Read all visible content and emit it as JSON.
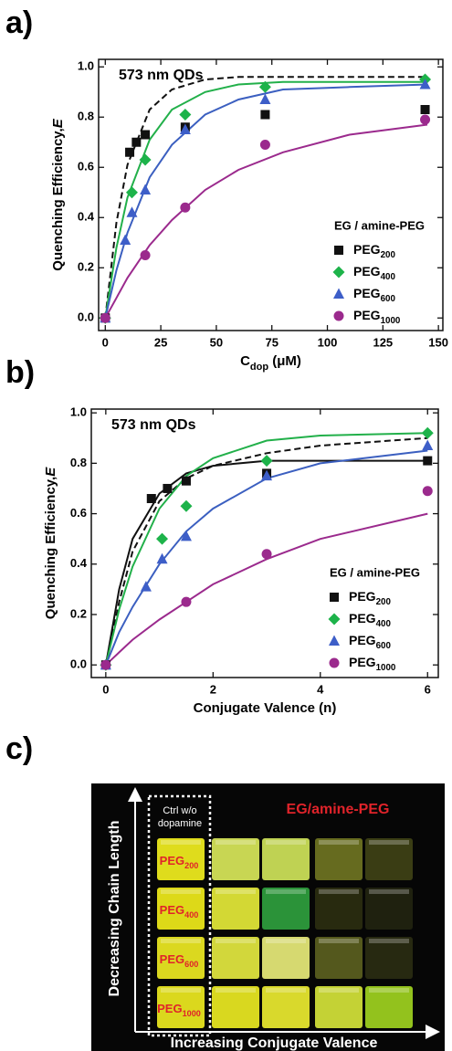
{
  "chart_data": [
    {
      "type": "scatter",
      "panel_label": "a)",
      "title": "573 nm QDs",
      "xlabel": "C",
      "xlabel_sub": "dop",
      "xlabel_unit": " (μM)",
      "ylabel": "Quenching Efficiency,",
      "ylabel_var": "E",
      "xlim": [
        -3,
        152
      ],
      "ylim": [
        -0.05,
        1.03
      ],
      "xticks": [
        0,
        25,
        50,
        75,
        100,
        125,
        150
      ],
      "yticks": [
        {
          "value": 0,
          "label": "0.0"
        },
        {
          "value": 0.2,
          "label": "0.2"
        },
        {
          "value": 0.4,
          "label": "0.4"
        },
        {
          "value": 0.6,
          "label": "0.6"
        },
        {
          "value": 0.8,
          "label": "0.8"
        },
        {
          "value": 1,
          "label": "1.0"
        }
      ],
      "legend": "lower right",
      "legend_title": "EG / amine-PEG",
      "series": [
        {
          "name": "PEG200",
          "color": "#111111",
          "marker": "square",
          "x": [
            0,
            11,
            14,
            18,
            36,
            72,
            144
          ],
          "values": [
            0,
            0.66,
            0.7,
            0.73,
            0.76,
            0.81,
            0.83
          ]
        },
        {
          "name": "PEG400",
          "color": "#1db34a",
          "marker": "diamond",
          "x": [
            0,
            12,
            18,
            36,
            72,
            144
          ],
          "values": [
            0,
            0.5,
            0.63,
            0.81,
            0.92,
            0.95
          ]
        },
        {
          "name": "PEG600",
          "color": "#3d5ec8",
          "marker": "triangle",
          "x": [
            0,
            9,
            12,
            18,
            36,
            72,
            144
          ],
          "values": [
            0,
            0.31,
            0.42,
            0.51,
            0.75,
            0.87,
            0.93
          ]
        },
        {
          "name": "PEG1000",
          "color": "#9b2a8d",
          "marker": "circle",
          "x": [
            0,
            18,
            36,
            72,
            144
          ],
          "values": [
            0,
            0.25,
            0.44,
            0.69,
            0.79
          ]
        }
      ],
      "fits": [
        {
          "color": "#111111",
          "dashed": true,
          "x": [
            0,
            5,
            10,
            20,
            30,
            45,
            60,
            80,
            110,
            145
          ],
          "values": [
            0,
            0.38,
            0.61,
            0.83,
            0.91,
            0.95,
            0.96,
            0.96,
            0.96,
            0.96
          ]
        },
        {
          "color": "#22b04a",
          "dashed": false,
          "x": [
            0,
            5,
            10,
            20,
            30,
            45,
            60,
            80,
            110,
            145
          ],
          "values": [
            0,
            0.28,
            0.48,
            0.71,
            0.83,
            0.9,
            0.93,
            0.94,
            0.94,
            0.94
          ]
        },
        {
          "color": "#3b5fc0",
          "dashed": false,
          "x": [
            0,
            5,
            10,
            20,
            30,
            45,
            60,
            80,
            110,
            145
          ],
          "values": [
            0,
            0.19,
            0.34,
            0.56,
            0.69,
            0.81,
            0.87,
            0.91,
            0.92,
            0.93
          ]
        },
        {
          "color": "#9b2a8d",
          "dashed": false,
          "x": [
            0,
            5,
            10,
            20,
            30,
            45,
            60,
            80,
            110,
            145
          ],
          "values": [
            0,
            0.08,
            0.16,
            0.29,
            0.39,
            0.51,
            0.59,
            0.66,
            0.73,
            0.77
          ]
        }
      ]
    },
    {
      "type": "scatter",
      "panel_label": "b)",
      "title": "573 nm QDs",
      "xlabel": "Conjugate Valence (n)",
      "ylabel": "Quenching Efficiency,",
      "ylabel_var": "E",
      "xlim": [
        -0.27,
        6.2
      ],
      "ylim": [
        -0.05,
        1.015
      ],
      "xticks": [
        0,
        2,
        4,
        6
      ],
      "yticks": [
        {
          "value": 0,
          "label": "0.0"
        },
        {
          "value": 0.2,
          "label": "0.2"
        },
        {
          "value": 0.4,
          "label": "0.4"
        },
        {
          "value": 0.6,
          "label": "0.6"
        },
        {
          "value": 0.8,
          "label": "0.8"
        },
        {
          "value": 1,
          "label": "1.0"
        }
      ],
      "legend": "lower right",
      "legend_title": "EG / amine-PEG",
      "series": [
        {
          "name": "PEG200",
          "color": "#111111",
          "marker": "square",
          "x": [
            0,
            0.85,
            1.15,
            1.5,
            3,
            6
          ],
          "values": [
            0,
            0.66,
            0.7,
            0.73,
            0.76,
            0.81
          ]
        },
        {
          "name": "PEG400",
          "color": "#1db34a",
          "marker": "diamond",
          "x": [
            0,
            1.05,
            1.5,
            3,
            6
          ],
          "values": [
            0,
            0.5,
            0.63,
            0.81,
            0.92
          ]
        },
        {
          "name": "PEG600",
          "color": "#3d5ec8",
          "marker": "triangle",
          "x": [
            0,
            0.75,
            1.05,
            1.5,
            3,
            6
          ],
          "values": [
            0,
            0.31,
            0.42,
            0.51,
            0.75,
            0.87
          ]
        },
        {
          "name": "PEG1000",
          "color": "#9b2a8d",
          "marker": "circle",
          "x": [
            0,
            1.5,
            3,
            6
          ],
          "values": [
            0,
            0.25,
            0.44,
            0.69
          ]
        }
      ],
      "fits": [
        {
          "color": "#111111",
          "dashed": false,
          "x": [
            0,
            0.25,
            0.5,
            1,
            1.5,
            2,
            3,
            4,
            6
          ],
          "values": [
            0,
            0.3,
            0.5,
            0.68,
            0.76,
            0.79,
            0.81,
            0.81,
            0.81
          ]
        },
        {
          "color": "#111111",
          "dashed": true,
          "x": [
            0,
            0.25,
            0.5,
            1,
            1.5,
            2,
            3,
            4,
            6
          ],
          "values": [
            0,
            0.25,
            0.45,
            0.65,
            0.74,
            0.79,
            0.84,
            0.87,
            0.9
          ]
        },
        {
          "color": "#22b04a",
          "dashed": false,
          "x": [
            0,
            0.25,
            0.5,
            1,
            1.5,
            2,
            3,
            4,
            6
          ],
          "values": [
            0,
            0.22,
            0.39,
            0.62,
            0.75,
            0.82,
            0.89,
            0.91,
            0.92
          ]
        },
        {
          "color": "#3b5fc0",
          "dashed": false,
          "x": [
            0,
            0.25,
            0.5,
            1,
            1.5,
            2,
            3,
            4,
            6
          ],
          "values": [
            0,
            0.13,
            0.23,
            0.4,
            0.53,
            0.62,
            0.74,
            0.8,
            0.85
          ]
        },
        {
          "color": "#9b2a8d",
          "dashed": false,
          "x": [
            0,
            0.25,
            0.5,
            1,
            1.5,
            2,
            3,
            4,
            6
          ],
          "values": [
            0,
            0.05,
            0.1,
            0.18,
            0.25,
            0.32,
            0.42,
            0.5,
            0.6
          ]
        }
      ]
    }
  ],
  "photo": {
    "panel_label": "c)",
    "control_label_1": "Ctrl w/o",
    "control_label_2": "dopamine",
    "header": "EG/amine-PEG",
    "rows": [
      "PEG200",
      "PEG400",
      "PEG600",
      "PEG1000"
    ],
    "y_axis": "Decreasing Chain Length",
    "x_axis": "Increasing Conjugate Valence"
  }
}
